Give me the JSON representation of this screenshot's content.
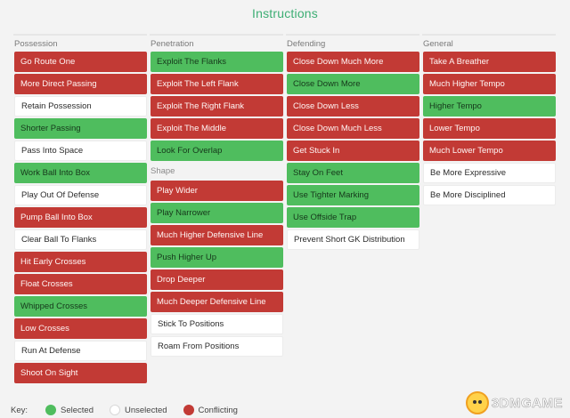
{
  "title": "Instructions",
  "columns": [
    {
      "heading": "Possession",
      "items": [
        {
          "label": "Go Route One",
          "state": "conflicting"
        },
        {
          "label": "More Direct Passing",
          "state": "conflicting"
        },
        {
          "label": "Retain Possession",
          "state": "unselected"
        },
        {
          "label": "Shorter Passing",
          "state": "selected"
        },
        {
          "label": "Pass Into Space",
          "state": "unselected"
        },
        {
          "label": "Work Ball Into Box",
          "state": "selected"
        },
        {
          "label": "Play Out Of Defense",
          "state": "unselected"
        },
        {
          "label": "Pump Ball Into Box",
          "state": "conflicting"
        },
        {
          "label": "Clear Ball To Flanks",
          "state": "unselected"
        },
        {
          "label": "Hit Early Crosses",
          "state": "conflicting"
        },
        {
          "label": "Float Crosses",
          "state": "conflicting"
        },
        {
          "label": "Whipped Crosses",
          "state": "selected"
        },
        {
          "label": "Low Crosses",
          "state": "conflicting"
        },
        {
          "label": "Run At Defense",
          "state": "unselected"
        },
        {
          "label": "Shoot On Sight",
          "state": "conflicting"
        }
      ]
    },
    {
      "heading": "Penetration",
      "items": [
        {
          "label": "Exploit The Flanks",
          "state": "selected"
        },
        {
          "label": "Exploit The Left Flank",
          "state": "conflicting"
        },
        {
          "label": "Exploit The Right Flank",
          "state": "conflicting"
        },
        {
          "label": "Exploit The Middle",
          "state": "conflicting"
        },
        {
          "label": "Look For Overlap",
          "state": "selected"
        }
      ],
      "subheading": "Shape",
      "subitems": [
        {
          "label": "Play Wider",
          "state": "conflicting"
        },
        {
          "label": "Play Narrower",
          "state": "selected"
        },
        {
          "label": "Much Higher Defensive Line",
          "state": "conflicting"
        },
        {
          "label": "Push Higher Up",
          "state": "selected"
        },
        {
          "label": "Drop Deeper",
          "state": "conflicting"
        },
        {
          "label": "Much Deeper Defensive Line",
          "state": "conflicting"
        },
        {
          "label": "Stick To Positions",
          "state": "unselected"
        },
        {
          "label": "Roam From Positions",
          "state": "unselected"
        }
      ]
    },
    {
      "heading": "Defending",
      "items": [
        {
          "label": "Close Down Much More",
          "state": "conflicting"
        },
        {
          "label": "Close Down More",
          "state": "selected"
        },
        {
          "label": "Close Down Less",
          "state": "conflicting"
        },
        {
          "label": "Close Down Much Less",
          "state": "conflicting"
        },
        {
          "label": "Get Stuck In",
          "state": "conflicting"
        },
        {
          "label": "Stay On Feet",
          "state": "selected"
        },
        {
          "label": "Use Tighter Marking",
          "state": "selected"
        },
        {
          "label": "Use Offside Trap",
          "state": "selected"
        },
        {
          "label": "Prevent Short GK Distribution",
          "state": "unselected"
        }
      ]
    },
    {
      "heading": "General",
      "items": [
        {
          "label": "Take A Breather",
          "state": "conflicting"
        },
        {
          "label": "Much Higher Tempo",
          "state": "conflicting"
        },
        {
          "label": "Higher Tempo",
          "state": "selected"
        },
        {
          "label": "Lower Tempo",
          "state": "conflicting"
        },
        {
          "label": "Much Lower Tempo",
          "state": "conflicting"
        },
        {
          "label": "Be More Expressive",
          "state": "unselected"
        },
        {
          "label": "Be More Disciplined",
          "state": "unselected"
        }
      ]
    }
  ],
  "key": {
    "label": "Key:",
    "selected": "Selected",
    "unselected": "Unselected",
    "conflicting": "Conflicting"
  },
  "colors": {
    "selected": "#4fbd5e",
    "conflicting": "#c23a35",
    "unselected": "#ffffff",
    "title": "#3dae74"
  },
  "watermark": "3DMGAME"
}
